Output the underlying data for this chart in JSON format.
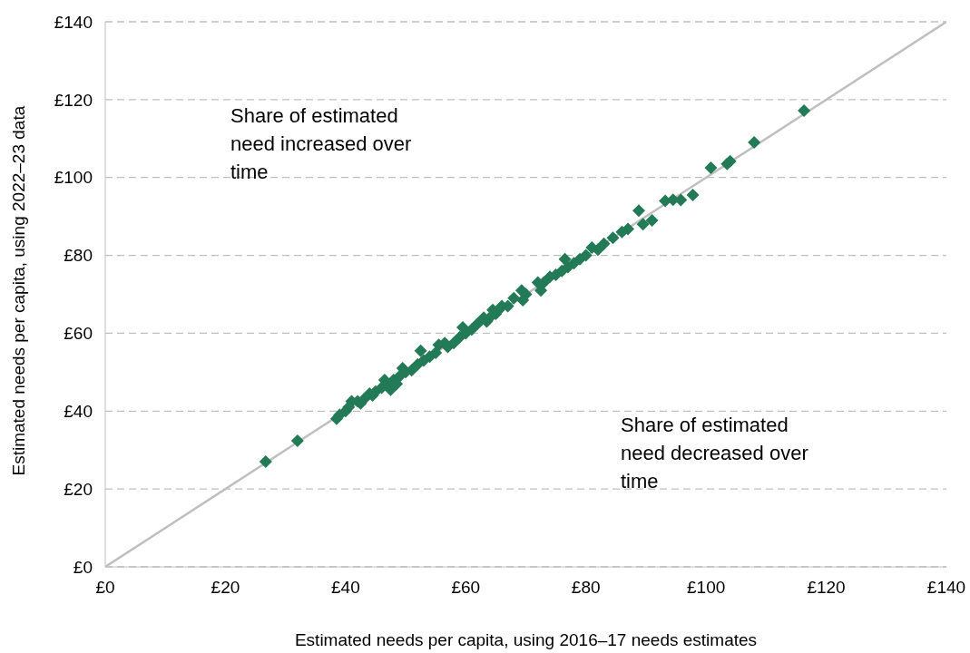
{
  "chart_data": {
    "type": "scatter",
    "xlabel": "Estimated needs per capita, using 2016–17 needs estimates",
    "ylabel": "Estimated needs per capita, using 2022–23 data",
    "xlim": [
      0,
      140
    ],
    "ylim": [
      0,
      140
    ],
    "xticks": [
      {
        "value": 0,
        "label": "£0"
      },
      {
        "value": 20,
        "label": "£20"
      },
      {
        "value": 40,
        "label": "£40"
      },
      {
        "value": 60,
        "label": "£60"
      },
      {
        "value": 80,
        "label": "£80"
      },
      {
        "value": 100,
        "label": "£100"
      },
      {
        "value": 120,
        "label": "£120"
      },
      {
        "value": 140,
        "label": "£140"
      }
    ],
    "yticks": [
      {
        "value": 0,
        "label": "£0"
      },
      {
        "value": 20,
        "label": "£20"
      },
      {
        "value": 40,
        "label": "£40"
      },
      {
        "value": 60,
        "label": "£60"
      },
      {
        "value": 80,
        "label": "£80"
      },
      {
        "value": 100,
        "label": "£100"
      },
      {
        "value": 120,
        "label": "£120"
      },
      {
        "value": 140,
        "label": "£140"
      }
    ],
    "grid": "y",
    "marker": "diamond",
    "annotations": [
      "Share of estimated need increased over time",
      "Share of estimated need decreased over time"
    ],
    "series": [
      {
        "type": "line",
        "marker": "none",
        "color": "#bfbfbf",
        "x": [
          0,
          140
        ],
        "values": [
          0,
          140
        ]
      },
      {
        "color": "#237a57",
        "x": [
          26.7,
          32,
          116.3,
          108,
          103.5,
          104,
          100.8,
          97.8,
          95.8,
          94.5,
          93.2,
          91,
          89.5,
          88.8,
          87,
          86,
          84.5,
          83,
          82,
          81,
          80,
          79,
          78,
          77,
          76.5,
          76,
          75,
          74,
          73,
          72.5,
          72,
          70,
          69.5,
          69.3,
          68,
          67,
          66,
          65.5,
          65,
          64.5,
          64,
          63.5,
          63,
          62,
          61,
          60,
          59.5,
          59,
          58,
          57,
          56.5,
          55.5,
          55,
          54,
          53,
          52.5,
          52,
          51,
          50,
          49.5,
          49,
          48.5,
          48,
          47.5,
          47,
          46.5,
          46,
          45,
          44.5,
          44,
          43,
          42.5,
          42,
          41,
          40.5,
          40,
          39,
          38.5
        ],
        "values": [
          27,
          32.4,
          117.2,
          109,
          103.5,
          104.2,
          102.5,
          95.5,
          94.2,
          94.3,
          94,
          89,
          88,
          91.5,
          86.8,
          86,
          84.5,
          83,
          81.5,
          82,
          80,
          79,
          78,
          77,
          79,
          76,
          75,
          74.5,
          73,
          71,
          73,
          70,
          68.5,
          71,
          69,
          67,
          67,
          66,
          65,
          66,
          64,
          63,
          64,
          62.5,
          61,
          60,
          61.5,
          59,
          57.5,
          56.5,
          57.5,
          57,
          55,
          54,
          53,
          55.5,
          52,
          50.5,
          50,
          51,
          49,
          47,
          48,
          45.5,
          47,
          48,
          46,
          45,
          44,
          44.5,
          43,
          42,
          42.5,
          42.5,
          41,
          40,
          39,
          38
        ]
      }
    ]
  }
}
